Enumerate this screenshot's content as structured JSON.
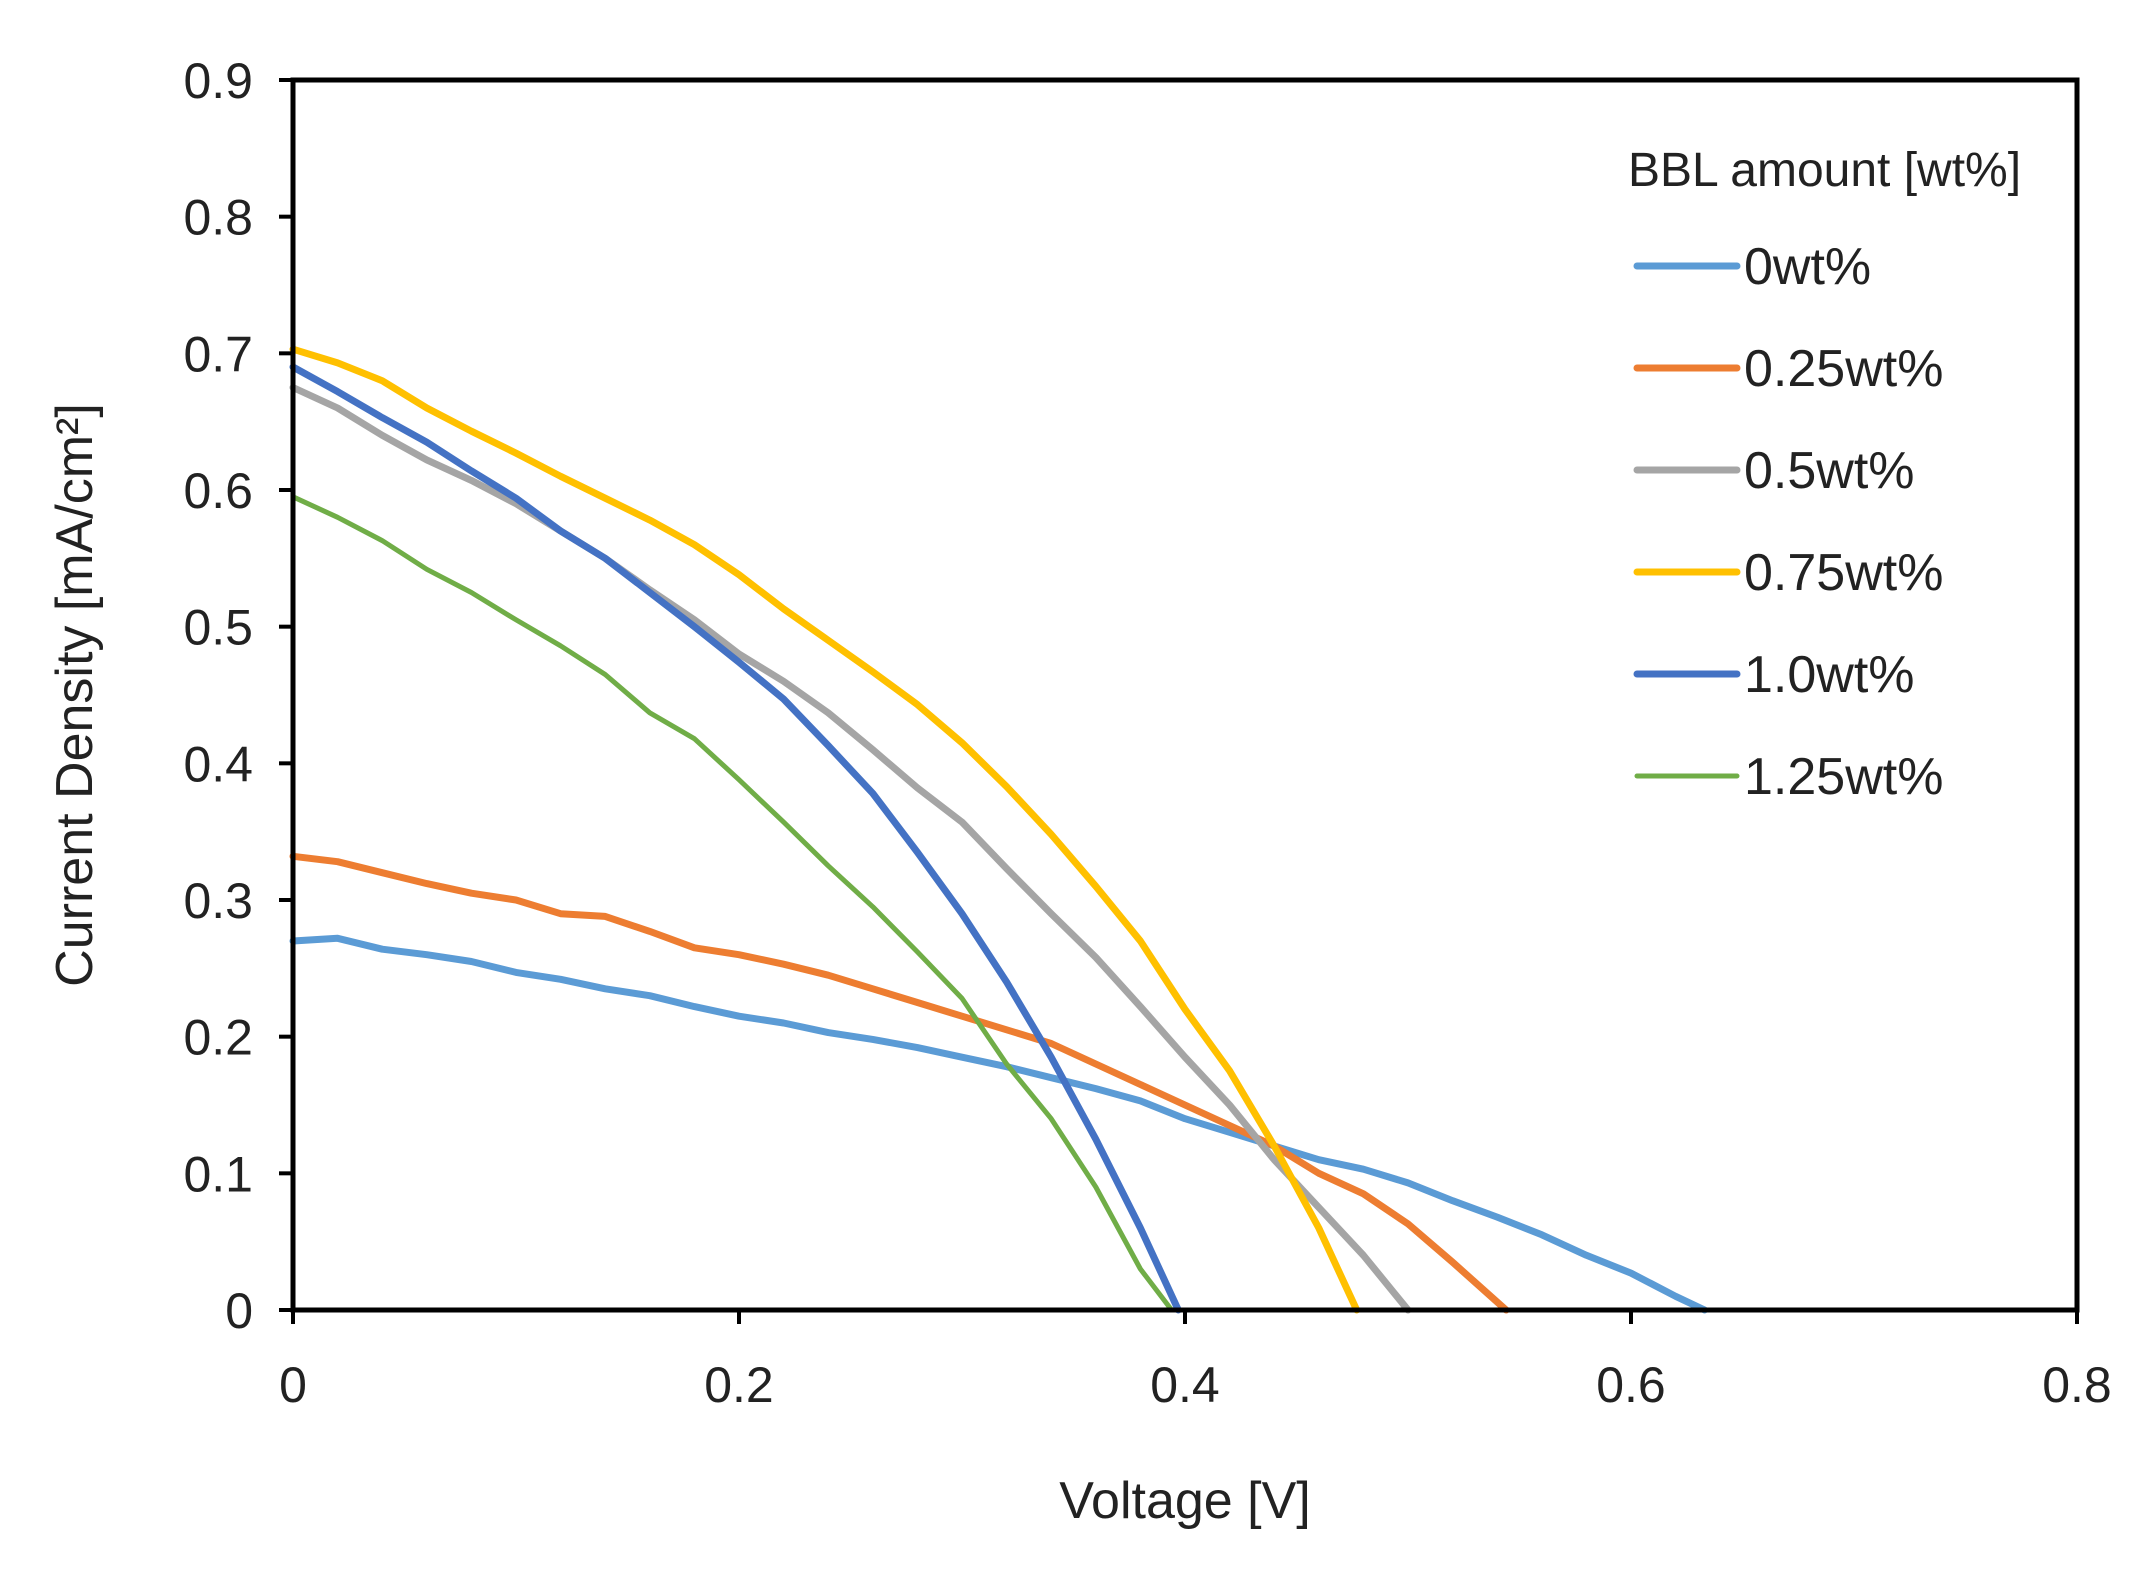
{
  "chart_data": {
    "type": "line",
    "title": "",
    "xlabel": "Voltage [V]",
    "ylabel": "Current Density [mA/cm²]",
    "xlim": [
      0,
      0.8
    ],
    "ylim": [
      0,
      0.9
    ],
    "xticks": [
      0,
      0.2,
      0.4,
      0.6,
      0.8
    ],
    "xtick_labels": [
      "0",
      "0.2",
      "0.4",
      "0.6",
      "0.8"
    ],
    "yticks": [
      0,
      0.1,
      0.2,
      0.3,
      0.4,
      0.5,
      0.6,
      0.7,
      0.8,
      0.9
    ],
    "ytick_labels": [
      "0",
      "0.1",
      "0.2",
      "0.3",
      "0.4",
      "0.5",
      "0.6",
      "0.7",
      "0.8",
      "0.9"
    ],
    "grid": false,
    "legend": {
      "title": "BBL amount [wt%]",
      "position": "top-right"
    },
    "series": [
      {
        "name": "0wt%",
        "color": "#5B9BD5",
        "x": [
          0,
          0.02,
          0.04,
          0.06,
          0.08,
          0.1,
          0.12,
          0.14,
          0.16,
          0.18,
          0.2,
          0.22,
          0.24,
          0.26,
          0.28,
          0.3,
          0.32,
          0.34,
          0.36,
          0.38,
          0.4,
          0.42,
          0.44,
          0.46,
          0.48,
          0.5,
          0.52,
          0.54,
          0.56,
          0.58,
          0.6,
          0.62,
          0.633
        ],
        "y": [
          0.27,
          0.272,
          0.264,
          0.26,
          0.255,
          0.247,
          0.242,
          0.235,
          0.23,
          0.222,
          0.215,
          0.21,
          0.203,
          0.198,
          0.192,
          0.185,
          0.178,
          0.17,
          0.162,
          0.153,
          0.14,
          0.13,
          0.12,
          0.11,
          0.103,
          0.093,
          0.08,
          0.068,
          0.055,
          0.04,
          0.027,
          0.01,
          0
        ]
      },
      {
        "name": "0.25wt%",
        "color": "#ED7D31",
        "x": [
          0,
          0.02,
          0.04,
          0.06,
          0.08,
          0.1,
          0.12,
          0.14,
          0.16,
          0.18,
          0.2,
          0.22,
          0.24,
          0.26,
          0.28,
          0.3,
          0.32,
          0.34,
          0.36,
          0.38,
          0.4,
          0.42,
          0.44,
          0.46,
          0.48,
          0.5,
          0.52,
          0.544
        ],
        "y": [
          0.332,
          0.328,
          0.32,
          0.312,
          0.305,
          0.3,
          0.29,
          0.288,
          0.277,
          0.265,
          0.26,
          0.253,
          0.245,
          0.235,
          0.225,
          0.215,
          0.205,
          0.195,
          0.18,
          0.165,
          0.15,
          0.135,
          0.12,
          0.1,
          0.085,
          0.063,
          0.035,
          0
        ]
      },
      {
        "name": "0.5wt%",
        "color": "#A5A5A5",
        "x": [
          0,
          0.02,
          0.04,
          0.06,
          0.08,
          0.1,
          0.12,
          0.14,
          0.16,
          0.18,
          0.2,
          0.22,
          0.24,
          0.26,
          0.28,
          0.3,
          0.32,
          0.34,
          0.36,
          0.38,
          0.4,
          0.42,
          0.44,
          0.46,
          0.48,
          0.5
        ],
        "y": [
          0.675,
          0.66,
          0.64,
          0.622,
          0.607,
          0.59,
          0.57,
          0.55,
          0.527,
          0.505,
          0.48,
          0.46,
          0.437,
          0.41,
          0.382,
          0.357,
          0.323,
          0.29,
          0.258,
          0.222,
          0.185,
          0.15,
          0.11,
          0.075,
          0.04,
          0
        ]
      },
      {
        "name": "0.75wt%",
        "color": "#FFC000",
        "x": [
          0,
          0.02,
          0.04,
          0.06,
          0.08,
          0.1,
          0.12,
          0.14,
          0.16,
          0.18,
          0.2,
          0.22,
          0.24,
          0.26,
          0.28,
          0.3,
          0.32,
          0.34,
          0.36,
          0.38,
          0.39,
          0.4,
          0.42,
          0.44,
          0.46,
          0.477
        ],
        "y": [
          0.703,
          0.693,
          0.68,
          0.66,
          0.643,
          0.627,
          0.61,
          0.594,
          0.578,
          0.56,
          0.538,
          0.513,
          0.49,
          0.467,
          0.443,
          0.415,
          0.383,
          0.348,
          0.31,
          0.27,
          0.245,
          0.22,
          0.175,
          0.12,
          0.06,
          0
        ]
      },
      {
        "name": "1.0wt%",
        "color": "#4472C4",
        "x": [
          0,
          0.02,
          0.04,
          0.06,
          0.08,
          0.1,
          0.12,
          0.14,
          0.16,
          0.18,
          0.2,
          0.22,
          0.24,
          0.26,
          0.28,
          0.3,
          0.32,
          0.34,
          0.36,
          0.38,
          0.397
        ],
        "y": [
          0.69,
          0.672,
          0.653,
          0.635,
          0.614,
          0.594,
          0.57,
          0.55,
          0.525,
          0.5,
          0.474,
          0.447,
          0.413,
          0.378,
          0.335,
          0.29,
          0.24,
          0.185,
          0.125,
          0.06,
          0
        ]
      },
      {
        "name": "1.25wt%",
        "color": "#70AD47",
        "x": [
          0,
          0.02,
          0.04,
          0.06,
          0.08,
          0.1,
          0.12,
          0.14,
          0.16,
          0.18,
          0.2,
          0.22,
          0.24,
          0.26,
          0.28,
          0.3,
          0.32,
          0.34,
          0.36,
          0.38,
          0.394
        ],
        "y": [
          0.595,
          0.58,
          0.563,
          0.542,
          0.525,
          0.505,
          0.486,
          0.465,
          0.437,
          0.418,
          0.388,
          0.357,
          0.325,
          0.295,
          0.262,
          0.228,
          0.18,
          0.14,
          0.09,
          0.03,
          0
        ]
      }
    ]
  }
}
